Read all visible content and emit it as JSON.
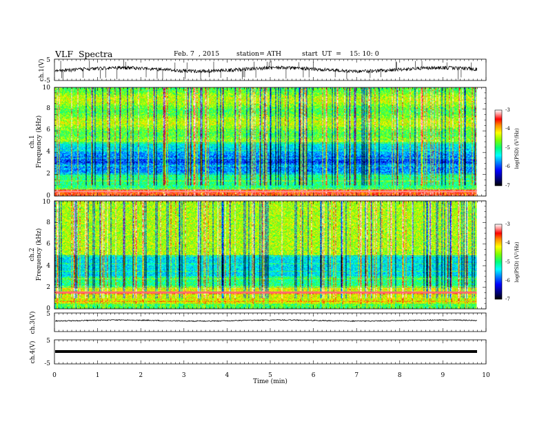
{
  "header": {
    "title": "VLF  Spectra",
    "date": "Feb. 7  , 2015",
    "station": "station= ATH",
    "start_ut": "start  UT  =    15: 10: 0"
  },
  "colors": {
    "spectrogram_scale": [
      "#000000",
      "#00006e",
      "#0000ff",
      "#0096ff",
      "#00ffff",
      "#00ff78",
      "#7cff00",
      "#ffff00",
      "#ff8c00",
      "#ff0000",
      "#ffa0a0",
      "#ffffff"
    ]
  },
  "chart_data": [
    {
      "type": "line",
      "ylabel": "ch.1(V)",
      "ylim": [
        -5,
        5
      ],
      "ytick_labels": [
        "5",
        "-5"
      ],
      "series": [
        {
          "values_description": "waveform around 0 V with spikes"
        }
      ]
    },
    {
      "type": "heatmap",
      "ylabel": "ch.1\nFrequency  (kHz)",
      "ylabel_lines": [
        "ch.1",
        "Frequency  (kHz)"
      ],
      "ylim": [
        0,
        10
      ],
      "ytick_labels": [
        "0",
        "2",
        "4",
        "6",
        "8",
        "10"
      ],
      "colorbar": {
        "label": "log(PSD) (V²/Hz)",
        "ticks": [
          "-3",
          "-4",
          "-5",
          "-6",
          "-7"
        ],
        "range": [
          -7,
          -3
        ]
      }
    },
    {
      "type": "heatmap",
      "ylabel": "ch.2\nFrequency  (kHz)",
      "ylabel_lines": [
        "ch.2",
        "Frequency  (kHz)"
      ],
      "ylim": [
        0,
        10
      ],
      "ytick_labels": [
        "0",
        "2",
        "4",
        "6",
        "8",
        "10"
      ],
      "colorbar": {
        "label": "log(PSD) (V²/Hz)",
        "ticks": [
          "-3",
          "-4",
          "-5",
          "-6",
          "-7"
        ],
        "range": [
          -7,
          -3
        ]
      }
    },
    {
      "type": "line",
      "ylabel": "ch.3(V)",
      "ytick_labels": [
        "5"
      ],
      "series": [
        {
          "values_description": "flat line near 0 V"
        }
      ]
    },
    {
      "type": "line",
      "ylabel": "ch.4(V)",
      "ylim": [
        -5,
        5
      ],
      "ytick_labels": [
        "5",
        "-5"
      ],
      "series": [
        {
          "values_description": "thick flat line near 0 V"
        }
      ]
    }
  ],
  "xaxis": {
    "label": "Time  (min)",
    "range": [
      0,
      10
    ],
    "tick_labels": [
      "0",
      "1",
      "2",
      "3",
      "4",
      "5",
      "6",
      "7",
      "8",
      "9",
      "10"
    ],
    "data_end": 9.8
  }
}
